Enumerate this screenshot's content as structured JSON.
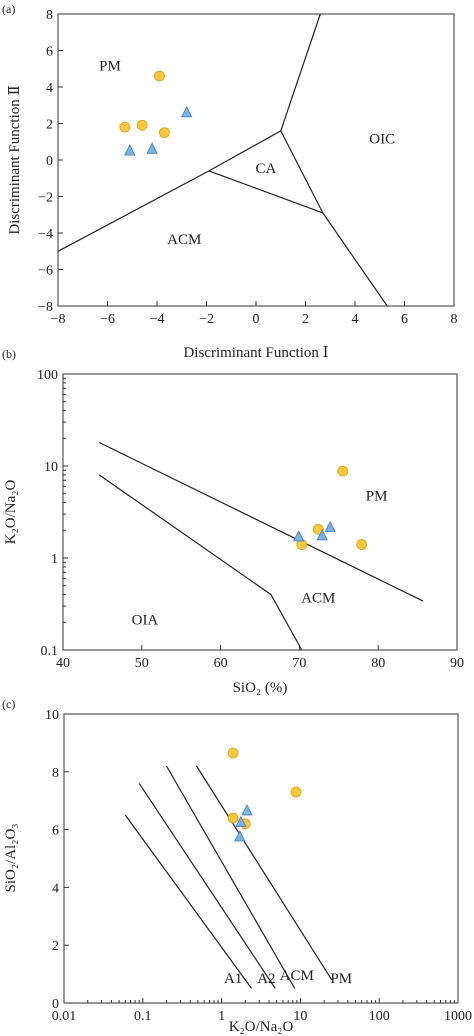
{
  "colors": {
    "circle_fill": "#f6c83a",
    "circle_stroke": "#d9a21a",
    "triangle_fill": "#79b2e3",
    "triangle_stroke": "#3f7fbf",
    "line": "#222222"
  },
  "chart_data": [
    {
      "panel_label": "(a)",
      "type": "scatter",
      "xlabel": "Discriminant Function Ⅰ",
      "ylabel": "Discriminant Function Ⅱ",
      "xlim": [
        -8,
        8
      ],
      "ylim": [
        -8,
        8
      ],
      "xticks": [
        -8,
        -6,
        -4,
        -2,
        0,
        2,
        4,
        6,
        8
      ],
      "yticks": [
        -8,
        -6,
        -4,
        -2,
        0,
        2,
        4,
        6,
        8
      ],
      "xtick_labels": [
        "−8",
        "−6",
        "−4",
        "−2",
        "0",
        "2",
        "4",
        "6",
        "8"
      ],
      "ytick_labels": [
        "−8",
        "−6",
        "−4",
        "−2",
        "0",
        "2",
        "4",
        "6",
        "8"
      ],
      "series": [
        {
          "marker": "circle",
          "points": [
            [
              -3.9,
              4.6
            ],
            [
              -5.3,
              1.8
            ],
            [
              -4.6,
              1.9
            ],
            [
              -3.7,
              1.5
            ]
          ]
        },
        {
          "marker": "triangle",
          "points": [
            [
              -2.8,
              2.6
            ],
            [
              -5.1,
              0.5
            ],
            [
              -4.2,
              0.6
            ]
          ]
        }
      ],
      "boundaries": [
        [
          [
            -8,
            -5
          ],
          [
            -1.9,
            -0.6
          ],
          [
            1.0,
            1.6
          ],
          [
            2.7,
            -2.9
          ],
          [
            -1.9,
            -0.6
          ]
        ],
        [
          [
            1.0,
            1.6
          ],
          [
            2.6,
            8
          ]
        ],
        [
          [
            2.7,
            -2.9
          ],
          [
            5.3,
            -8
          ]
        ]
      ],
      "regions": [
        {
          "label": "PM",
          "x": -5.9,
          "y": 4.9
        },
        {
          "label": "OIC",
          "x": 5.1,
          "y": 0.9
        },
        {
          "label": "CA",
          "x": 0.4,
          "y": -0.7
        },
        {
          "label": "ACM",
          "x": -2.9,
          "y": -4.6
        }
      ]
    },
    {
      "panel_label": "(b)",
      "type": "scatter",
      "xlabel": "SiO₂ (%)",
      "ylabel": "K₂O/Na₂O",
      "xlim": [
        40,
        90
      ],
      "ylim": [
        0.1,
        100
      ],
      "yscale": "log",
      "xticks": [
        40,
        50,
        60,
        70,
        80,
        90
      ],
      "yticks": [
        0.1,
        1,
        10,
        100
      ],
      "xtick_labels": [
        "40",
        "50",
        "60",
        "70",
        "80",
        "90"
      ],
      "ytick_labels": [
        "0.1",
        "1",
        "10",
        "100"
      ],
      "series": [
        {
          "marker": "circle",
          "points": [
            [
              75.5,
              8.8
            ],
            [
              72.4,
              2.05
            ],
            [
              70.3,
              1.4
            ],
            [
              77.9,
              1.4
            ]
          ]
        },
        {
          "marker": "triangle",
          "points": [
            [
              73.9,
              2.15
            ],
            [
              72.9,
              1.75
            ],
            [
              69.9,
              1.7
            ]
          ]
        }
      ],
      "boundaries": [
        [
          [
            44.6,
            8
          ],
          [
            66.4,
            0.4
          ],
          [
            70.3,
            0.1
          ]
        ],
        [
          [
            44.6,
            18
          ],
          [
            85.7,
            0.34
          ]
        ]
      ],
      "regions": [
        {
          "label": "PM",
          "x": 79.8,
          "y": 4.2
        },
        {
          "label": "ACM",
          "x": 72.4,
          "y": 0.33
        },
        {
          "label": "OIA",
          "x": 50.4,
          "y": 0.19
        }
      ]
    },
    {
      "panel_label": "(c)",
      "type": "scatter",
      "xlabel": "K₂O/Na₂O",
      "ylabel": "SiO₂/Al₂O₃",
      "xlim": [
        0.01,
        1000
      ],
      "ylim": [
        0,
        10
      ],
      "xscale": "log",
      "xticks": [
        0.01,
        0.1,
        1,
        10,
        100,
        1000
      ],
      "yticks": [
        0,
        2,
        4,
        6,
        8,
        10
      ],
      "xtick_labels": [
        "0.01",
        "0.1",
        "1",
        "10",
        "100",
        "1000"
      ],
      "ytick_labels": [
        "0",
        "2",
        "4",
        "6",
        "8",
        "10"
      ],
      "series": [
        {
          "marker": "circle",
          "points": [
            [
              1.4,
              8.65
            ],
            [
              8.8,
              7.3
            ],
            [
              1.4,
              6.4
            ],
            [
              2.0,
              6.2
            ]
          ]
        },
        {
          "marker": "triangle",
          "points": [
            [
              2.1,
              6.65
            ],
            [
              1.75,
              6.25
            ],
            [
              1.7,
              5.75
            ]
          ]
        }
      ],
      "boundaries": [
        [
          [
            0.06,
            6.5
          ],
          [
            2.4,
            0.5
          ]
        ],
        [
          [
            0.09,
            7.6
          ],
          [
            4.8,
            0.5
          ]
        ],
        [
          [
            0.2,
            8.2
          ],
          [
            8.5,
            0.5
          ]
        ],
        [
          [
            0.48,
            8.2
          ],
          [
            25,
            0.8
          ]
        ]
      ],
      "regions": [
        {
          "label": "A1",
          "x": 1.4,
          "y": 0.7
        },
        {
          "label": "A2",
          "x": 3.7,
          "y": 0.7
        },
        {
          "label": "ACM",
          "x": 9.0,
          "y": 0.8
        },
        {
          "label": "PM",
          "x": 33,
          "y": 0.7
        }
      ]
    }
  ]
}
